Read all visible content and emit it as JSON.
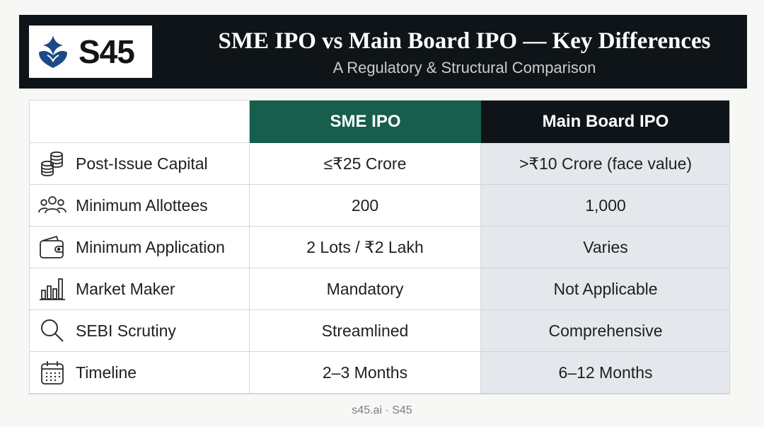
{
  "header": {
    "logo_text": "S45",
    "title": "SME IPO vs Main Board IPO — Key Differences",
    "subtitle": "A Regulatory & Structural Comparison"
  },
  "table": {
    "columns": [
      "",
      "SME IPO",
      "Main Board IPO"
    ],
    "rows": [
      {
        "icon": "coins-icon",
        "label": "Post-Issue Capital",
        "sme": "≤₹25 Crore",
        "main": ">₹10 Crore (face value)"
      },
      {
        "icon": "people-icon",
        "label": "Minimum Allottees",
        "sme": "200",
        "main": "1,000"
      },
      {
        "icon": "wallet-icon",
        "label": "Minimum Application",
        "sme": "2 Lots / ₹2 Lakh",
        "main": "Varies"
      },
      {
        "icon": "bar-chart-icon",
        "label": "Market Maker",
        "sme": "Mandatory",
        "main": "Not Applicable"
      },
      {
        "icon": "search-icon",
        "label": "SEBI Scrutiny",
        "sme": "Streamlined",
        "main": "Comprehensive"
      },
      {
        "icon": "calendar-icon",
        "label": "Timeline",
        "sme": "2–3 Months",
        "main": "6–12 Months"
      }
    ]
  },
  "footer": "s45.ai · S45",
  "colors": {
    "banner": "#0e1417",
    "sme_header": "#175e4c",
    "main_header": "#0e1417",
    "main_column": "#e4e8ec",
    "logo_mark": "#1b4a86"
  }
}
